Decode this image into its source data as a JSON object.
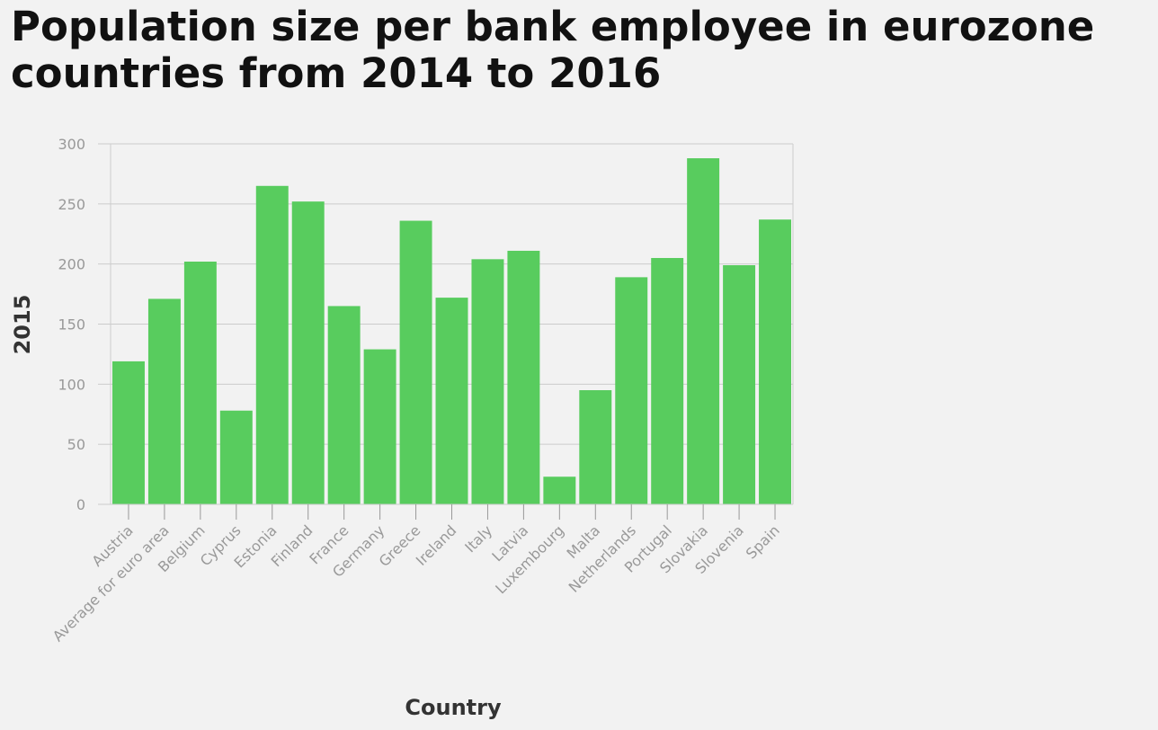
{
  "chart_data": {
    "type": "bar",
    "title": "Population size per bank employee in eurozone countries from 2014 to 2016",
    "xlabel": "Country",
    "ylabel": "2015",
    "ylim": [
      0,
      300
    ],
    "yticks": [
      0,
      50,
      100,
      150,
      200,
      250,
      300
    ],
    "grid": true,
    "bar_color": "#58cc5e",
    "categories": [
      "Austria",
      "Average for euro area",
      "Belgium",
      "Cyprus",
      "Estonia",
      "Finland",
      "France",
      "Germany",
      "Greece",
      "Ireland",
      "Italy",
      "Latvia",
      "Luxembourg",
      "Malta",
      "Netherlands",
      "Portugal",
      "Slovakia",
      "Slovenia",
      "Spain"
    ],
    "values": [
      119,
      171,
      202,
      78,
      265,
      252,
      165,
      129,
      236,
      172,
      204,
      211,
      23,
      95,
      189,
      205,
      288,
      199,
      237
    ]
  }
}
